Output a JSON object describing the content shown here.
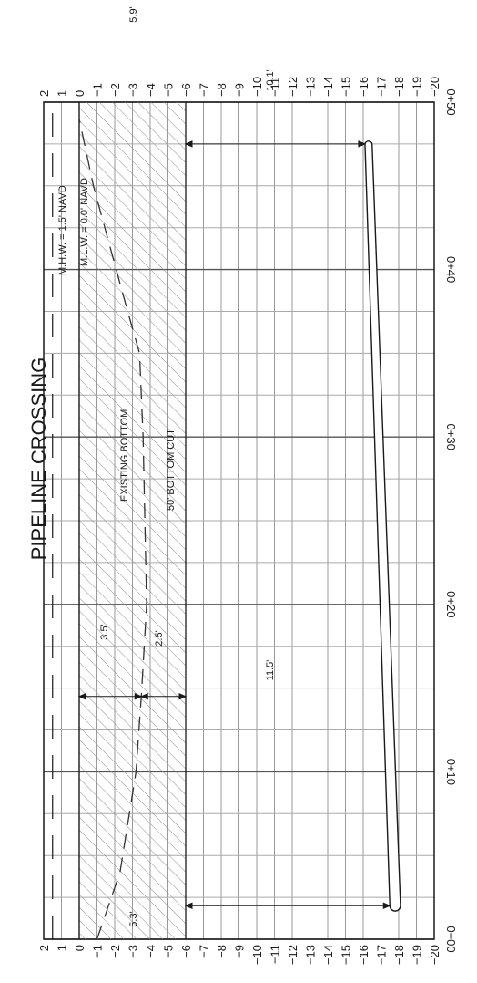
{
  "title": "PIPELINE CROSSING",
  "elevation_ticks": [
    "2",
    "1",
    "0",
    "−1",
    "−2",
    "−3",
    "−4",
    "−5",
    "−6",
    "−7",
    "−8",
    "−9",
    "−10",
    "−11",
    "−12",
    "−13",
    "−14",
    "−15",
    "−16",
    "−17",
    "−18",
    "−19",
    "−20"
  ],
  "station_ticks": [
    "0+00",
    "0+10",
    "0+20",
    "0+30",
    "0+40",
    "0+50"
  ],
  "labels": {
    "mhw": "M.H.W. = 1.5' NAVD",
    "mlw": "M.L.W. = 0.0' NAVD",
    "existing_bottom": "EXISTING BOTTOM",
    "bottom_cut": "50' BOTTOM CUT"
  },
  "dimensions": {
    "cover_start": "11.5'",
    "cover_end": "10.1'",
    "depth_start": "5.3'",
    "depth_end": "5.9'",
    "depth_mid": "3.5'",
    "cut_mid": "2.5'"
  },
  "chart_data": {
    "type": "line",
    "x_unit": "station (ft)",
    "y_unit": "elevation (ft NAVD)",
    "xlim": [
      0,
      50
    ],
    "ylim": [
      -20,
      2
    ],
    "mhw_elevation": 1.5,
    "mlw_elevation": 0.0,
    "cut_elevation": -6.0,
    "existing_bottom": [
      [
        0,
        -1
      ],
      [
        4,
        -2.3
      ],
      [
        10,
        -3.2
      ],
      [
        14.5,
        -3.5
      ],
      [
        20,
        -3.8
      ],
      [
        30,
        -3.6
      ],
      [
        35,
        -3.4
      ],
      [
        38,
        -2.6
      ],
      [
        45,
        -0.8
      ],
      [
        49,
        0
      ]
    ],
    "pipeline_top": [
      [
        2,
        -17.5
      ],
      [
        47.5,
        -16.1
      ]
    ],
    "pipeline_bottom": [
      [
        2,
        -18.1
      ],
      [
        47.5,
        -16.5
      ]
    ],
    "grid": true
  }
}
